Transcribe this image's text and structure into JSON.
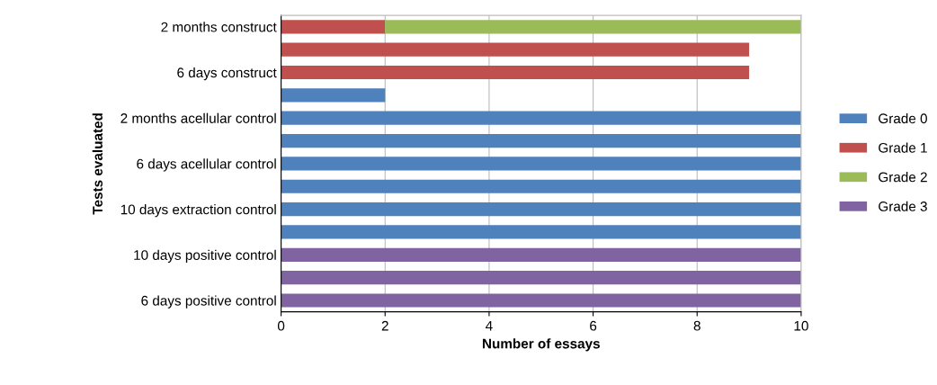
{
  "chart_data": {
    "type": "bar",
    "orientation": "horizontal",
    "stacked": true,
    "categories": [
      "2 months construct",
      null,
      "6 days construct",
      null,
      "2 months acellular control",
      null,
      "6 days acellular control",
      null,
      "10 days extraction control",
      null,
      "10 days positive control",
      null,
      "6 days positive control"
    ],
    "series": [
      {
        "name": "Grade 0",
        "color": "#4f81bd",
        "values": [
          null,
          null,
          null,
          2,
          10,
          10,
          10,
          10,
          10,
          10,
          null,
          null,
          null
        ]
      },
      {
        "name": "Grade 1",
        "color": "#c0504d",
        "values": [
          2,
          9,
          9,
          null,
          null,
          null,
          null,
          null,
          null,
          null,
          null,
          null,
          null
        ]
      },
      {
        "name": "Grade 2",
        "color": "#9bbb59",
        "values": [
          8,
          null,
          null,
          null,
          null,
          null,
          null,
          null,
          null,
          null,
          null,
          null,
          null
        ]
      },
      {
        "name": "Grade 3",
        "color": "#8064a2",
        "values": [
          null,
          null,
          null,
          null,
          null,
          null,
          null,
          null,
          null,
          null,
          10,
          10,
          10
        ]
      }
    ],
    "xlim": [
      0,
      10
    ],
    "xticks": [
      0,
      2,
      4,
      6,
      8,
      10
    ],
    "xlabel": "Number of essays",
    "ylabel": "Tests evaluated",
    "grid": "x",
    "legend": "right"
  }
}
